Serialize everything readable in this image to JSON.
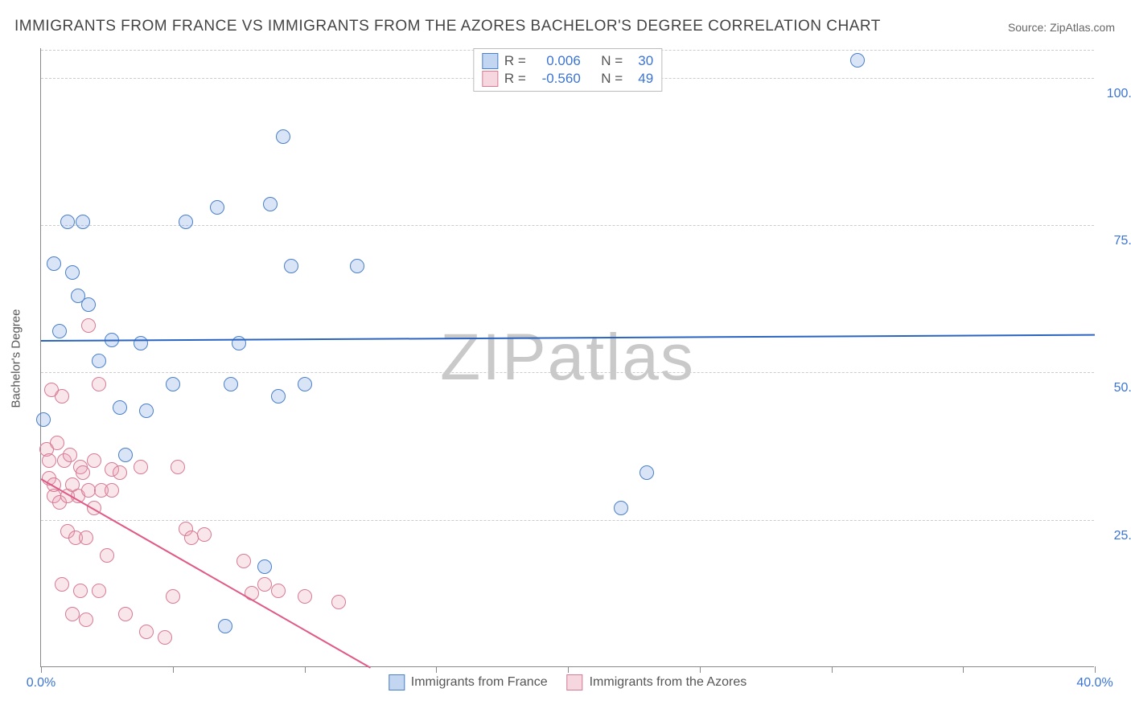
{
  "title": "IMMIGRANTS FROM FRANCE VS IMMIGRANTS FROM THE AZORES BACHELOR'S DEGREE CORRELATION CHART",
  "source": "Source: ZipAtlas.com",
  "watermark": "ZIPatlas",
  "y_axis_label": "Bachelor's Degree",
  "chart": {
    "type": "scatter",
    "xlim": [
      0,
      40
    ],
    "ylim": [
      0,
      105
    ],
    "x_ticks": [
      0,
      5,
      10,
      15,
      20,
      25,
      30,
      35,
      40
    ],
    "x_tick_labels": {
      "0": "0.0%",
      "40": "40.0%"
    },
    "y_ticks": [
      25,
      50,
      75,
      100
    ],
    "y_tick_labels": [
      "25.0%",
      "50.0%",
      "75.0%",
      "100.0%"
    ],
    "background_color": "#ffffff",
    "grid_color": "#cccccc",
    "axis_color": "#888888",
    "marker_radius": 9,
    "marker_stroke_width": 1.5,
    "marker_fill_opacity": 0.25
  },
  "series": [
    {
      "name": "Immigrants from France",
      "color": "#6699dd",
      "stroke": "#4a7fc9",
      "line_color": "#2a64c0",
      "R": "0.006",
      "N": "30",
      "trend": {
        "x1": 0,
        "y1": 55.5,
        "x2": 40,
        "y2": 56.5
      },
      "points": [
        [
          0.1,
          42
        ],
        [
          0.5,
          68.5
        ],
        [
          0.7,
          57
        ],
        [
          1.0,
          75.5
        ],
        [
          1.2,
          67
        ],
        [
          1.4,
          63
        ],
        [
          1.6,
          75.5
        ],
        [
          1.8,
          61.5
        ],
        [
          2.2,
          52
        ],
        [
          2.7,
          55.5
        ],
        [
          3.2,
          36
        ],
        [
          3.0,
          44
        ],
        [
          3.8,
          55
        ],
        [
          4.0,
          43.5
        ],
        [
          5.0,
          48
        ],
        [
          5.5,
          75.5
        ],
        [
          6.7,
          78
        ],
        [
          7.0,
          7
        ],
        [
          7.2,
          48
        ],
        [
          7.5,
          55
        ],
        [
          8.7,
          78.5
        ],
        [
          8.5,
          17
        ],
        [
          9.0,
          46
        ],
        [
          9.2,
          90
        ],
        [
          9.5,
          68
        ],
        [
          10.0,
          48
        ],
        [
          12.0,
          68
        ],
        [
          22.0,
          27
        ],
        [
          23.0,
          33
        ],
        [
          31.0,
          103
        ]
      ]
    },
    {
      "name": "Immigrants from the Azores",
      "color": "#e99cb0",
      "stroke": "#d77a94",
      "line_color": "#e05a85",
      "R": "-0.560",
      "N": "49",
      "trend": {
        "x1": 0,
        "y1": 32,
        "x2": 12.5,
        "y2": 0
      },
      "points": [
        [
          0.2,
          37
        ],
        [
          0.3,
          35
        ],
        [
          0.3,
          32
        ],
        [
          0.4,
          47
        ],
        [
          0.5,
          29
        ],
        [
          0.5,
          31
        ],
        [
          0.6,
          38
        ],
        [
          0.7,
          28
        ],
        [
          0.8,
          46
        ],
        [
          0.8,
          14
        ],
        [
          0.9,
          35
        ],
        [
          1.0,
          29
        ],
        [
          1.0,
          23
        ],
        [
          1.1,
          36
        ],
        [
          1.2,
          31
        ],
        [
          1.2,
          9
        ],
        [
          1.3,
          22
        ],
        [
          1.4,
          29
        ],
        [
          1.5,
          34
        ],
        [
          1.5,
          13
        ],
        [
          1.6,
          33
        ],
        [
          1.7,
          22
        ],
        [
          1.7,
          8
        ],
        [
          1.8,
          58
        ],
        [
          1.8,
          30
        ],
        [
          2.0,
          35
        ],
        [
          2.0,
          27
        ],
        [
          2.2,
          48
        ],
        [
          2.2,
          13
        ],
        [
          2.3,
          30
        ],
        [
          2.5,
          19
        ],
        [
          2.7,
          33.5
        ],
        [
          2.7,
          30
        ],
        [
          3.0,
          33
        ],
        [
          3.2,
          9
        ],
        [
          3.8,
          34
        ],
        [
          4.0,
          6
        ],
        [
          4.7,
          5
        ],
        [
          5.0,
          12
        ],
        [
          5.2,
          34
        ],
        [
          5.5,
          23.5
        ],
        [
          5.7,
          22
        ],
        [
          6.2,
          22.5
        ],
        [
          7.7,
          18
        ],
        [
          8.0,
          12.5
        ],
        [
          8.5,
          14
        ],
        [
          9.0,
          13
        ],
        [
          10.0,
          12
        ],
        [
          11.3,
          11
        ]
      ]
    }
  ],
  "stats_labels": {
    "R": "R =",
    "N": "N ="
  }
}
